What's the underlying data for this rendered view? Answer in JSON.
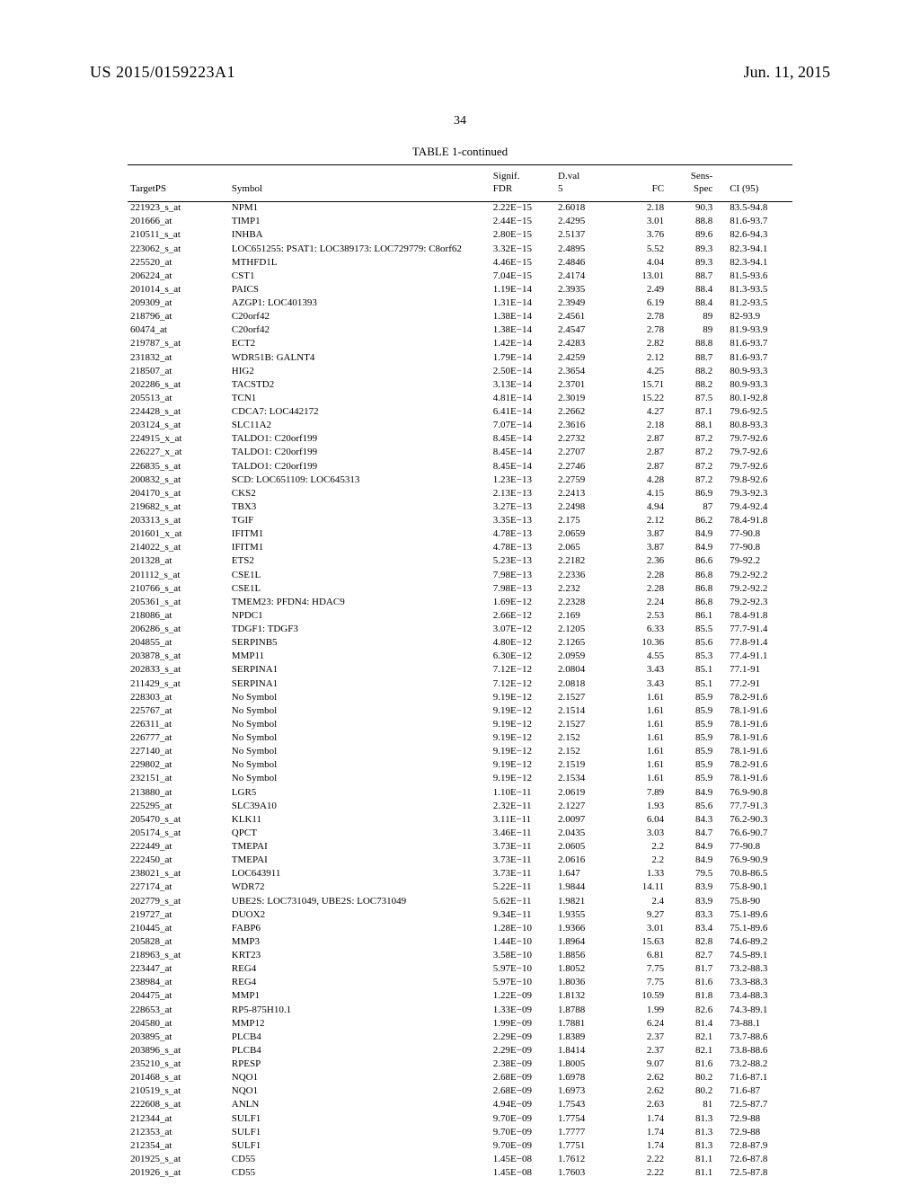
{
  "header": {
    "document_id": "US 2015/0159223A1",
    "date": "Jun. 11, 2015"
  },
  "page_number": "34",
  "table": {
    "title": "TABLE 1-continued",
    "columns": {
      "target_ps": "TargetPS",
      "symbol": "Symbol",
      "signif": "Signif.\nFDR",
      "dval": "D.val\n5",
      "fc": "FC",
      "sens": "Sens-\nSpec",
      "ci": "CI (95)"
    },
    "rows": [
      {
        "t": "221923_s_at",
        "s": "NPM1",
        "f": "2.22E−15",
        "d": "2.6018",
        "fc": "2.18",
        "sp": "90.3",
        "ci": "83.5-94.8"
      },
      {
        "t": "201666_at",
        "s": "TIMP1",
        "f": "2.44E−15",
        "d": "2.4295",
        "fc": "3.01",
        "sp": "88.8",
        "ci": "81.6-93.7"
      },
      {
        "t": "210511_s_at",
        "s": "INHBA",
        "f": "2.80E−15",
        "d": "2.5137",
        "fc": "3.76",
        "sp": "89.6",
        "ci": "82.6-94.3"
      },
      {
        "t": "223062_s_at",
        "s": "LOC651255: PSAT1: LOC389173: LOC729779: C8orf62",
        "f": "3.32E−15",
        "d": "2.4895",
        "fc": "5.52",
        "sp": "89.3",
        "ci": "82.3-94.1"
      },
      {
        "t": "225520_at",
        "s": "MTHFD1L",
        "f": "4.46E−15",
        "d": "2.4846",
        "fc": "4.04",
        "sp": "89.3",
        "ci": "82.3-94.1"
      },
      {
        "t": "206224_at",
        "s": "CST1",
        "f": "7.04E−15",
        "d": "2.4174",
        "fc": "13.01",
        "sp": "88.7",
        "ci": "81.5-93.6"
      },
      {
        "t": "201014_s_at",
        "s": "PAICS",
        "f": "1.19E−14",
        "d": "2.3935",
        "fc": "2.49",
        "sp": "88.4",
        "ci": "81.3-93.5"
      },
      {
        "t": "209309_at",
        "s": "AZGP1: LOC401393",
        "f": "1.31E−14",
        "d": "2.3949",
        "fc": "6.19",
        "sp": "88.4",
        "ci": "81.2-93.5"
      },
      {
        "t": "218796_at",
        "s": "C20orf42",
        "f": "1.38E−14",
        "d": "2.4561",
        "fc": "2.78",
        "sp": "89",
        "ci": "82-93.9"
      },
      {
        "t": "60474_at",
        "s": "C20orf42",
        "f": "1.38E−14",
        "d": "2.4547",
        "fc": "2.78",
        "sp": "89",
        "ci": "81.9-93.9"
      },
      {
        "t": "219787_s_at",
        "s": "ECT2",
        "f": "1.42E−14",
        "d": "2.4283",
        "fc": "2.82",
        "sp": "88.8",
        "ci": "81.6-93.7"
      },
      {
        "t": "231832_at",
        "s": "WDR51B: GALNT4",
        "f": "1.79E−14",
        "d": "2.4259",
        "fc": "2.12",
        "sp": "88.7",
        "ci": "81.6-93.7"
      },
      {
        "t": "218507_at",
        "s": "HIG2",
        "f": "2.50E−14",
        "d": "2.3654",
        "fc": "4.25",
        "sp": "88.2",
        "ci": "80.9-93.3"
      },
      {
        "t": "202286_s_at",
        "s": "TACSTD2",
        "f": "3.13E−14",
        "d": "2.3701",
        "fc": "15.71",
        "sp": "88.2",
        "ci": "80.9-93.3"
      },
      {
        "t": "205513_at",
        "s": "TCN1",
        "f": "4.81E−14",
        "d": "2.3019",
        "fc": "15.22",
        "sp": "87.5",
        "ci": "80.1-92.8"
      },
      {
        "t": "224428_s_at",
        "s": "CDCA7: LOC442172",
        "f": "6.41E−14",
        "d": "2.2662",
        "fc": "4.27",
        "sp": "87.1",
        "ci": "79.6-92.5"
      },
      {
        "t": "203124_s_at",
        "s": "SLC11A2",
        "f": "7.07E−14",
        "d": "2.3616",
        "fc": "2.18",
        "sp": "88.1",
        "ci": "80.8-93.3"
      },
      {
        "t": "224915_x_at",
        "s": "TALDO1: C20orf199",
        "f": "8.45E−14",
        "d": "2.2732",
        "fc": "2.87",
        "sp": "87.2",
        "ci": "79.7-92.6"
      },
      {
        "t": "226227_x_at",
        "s": "TALDO1: C20orf199",
        "f": "8.45E−14",
        "d": "2.2707",
        "fc": "2.87",
        "sp": "87.2",
        "ci": "79.7-92.6"
      },
      {
        "t": "226835_s_at",
        "s": "TALDO1: C20orf199",
        "f": "8.45E−14",
        "d": "2.2746",
        "fc": "2.87",
        "sp": "87.2",
        "ci": "79.7-92.6"
      },
      {
        "t": "200832_s_at",
        "s": "SCD: LOC651109: LOC645313",
        "f": "1.23E−13",
        "d": "2.2759",
        "fc": "4.28",
        "sp": "87.2",
        "ci": "79.8-92.6"
      },
      {
        "t": "204170_s_at",
        "s": "CKS2",
        "f": "2.13E−13",
        "d": "2.2413",
        "fc": "4.15",
        "sp": "86.9",
        "ci": "79.3-92.3"
      },
      {
        "t": "219682_s_at",
        "s": "TBX3",
        "f": "3.27E−13",
        "d": "2.2498",
        "fc": "4.94",
        "sp": "87",
        "ci": "79.4-92.4"
      },
      {
        "t": "203313_s_at",
        "s": "TGIF",
        "f": "3.35E−13",
        "d": "2.175",
        "fc": "2.12",
        "sp": "86.2",
        "ci": "78.4-91.8"
      },
      {
        "t": "201601_x_at",
        "s": "IFITM1",
        "f": "4.78E−13",
        "d": "2.0659",
        "fc": "3.87",
        "sp": "84.9",
        "ci": "77-90.8"
      },
      {
        "t": "214022_s_at",
        "s": "IFITM1",
        "f": "4.78E−13",
        "d": "2.065",
        "fc": "3.87",
        "sp": "84.9",
        "ci": "77-90.8"
      },
      {
        "t": "201328_at",
        "s": "ETS2",
        "f": "5.23E−13",
        "d": "2.2182",
        "fc": "2.36",
        "sp": "86.6",
        "ci": "79-92.2"
      },
      {
        "t": "201112_s_at",
        "s": "CSE1L",
        "f": "7.98E−13",
        "d": "2.2336",
        "fc": "2.28",
        "sp": "86.8",
        "ci": "79.2-92.2"
      },
      {
        "t": "210766_s_at",
        "s": "CSE1L",
        "f": "7.98E−13",
        "d": "2.232",
        "fc": "2.28",
        "sp": "86.8",
        "ci": "79.2-92.2"
      },
      {
        "t": "205361_s_at",
        "s": "TMEM23: PFDN4: HDAC9",
        "f": "1.69E−12",
        "d": "2.2328",
        "fc": "2.24",
        "sp": "86.8",
        "ci": "79.2-92.3"
      },
      {
        "t": "218086_at",
        "s": "NPDC1",
        "f": "2.66E−12",
        "d": "2.169",
        "fc": "2.53",
        "sp": "86.1",
        "ci": "78.4-91.8"
      },
      {
        "t": "206286_s_at",
        "s": "TDGF1: TDGF3",
        "f": "3.07E−12",
        "d": "2.1205",
        "fc": "6.33",
        "sp": "85.5",
        "ci": "77.7-91.4"
      },
      {
        "t": "204855_at",
        "s": "SERPINB5",
        "f": "4.80E−12",
        "d": "2.1265",
        "fc": "10.36",
        "sp": "85.6",
        "ci": "77.8-91.4"
      },
      {
        "t": "203878_s_at",
        "s": "MMP11",
        "f": "6.30E−12",
        "d": "2.0959",
        "fc": "4.55",
        "sp": "85.3",
        "ci": "77.4-91.1"
      },
      {
        "t": "202833_s_at",
        "s": "SERPINA1",
        "f": "7.12E−12",
        "d": "2.0804",
        "fc": "3.43",
        "sp": "85.1",
        "ci": "77.1-91"
      },
      {
        "t": "211429_s_at",
        "s": "SERPINA1",
        "f": "7.12E−12",
        "d": "2.0818",
        "fc": "3.43",
        "sp": "85.1",
        "ci": "77.2-91"
      },
      {
        "t": "228303_at",
        "s": "No Symbol",
        "f": "9.19E−12",
        "d": "2.1527",
        "fc": "1.61",
        "sp": "85.9",
        "ci": "78.2-91.6"
      },
      {
        "t": "225767_at",
        "s": "No Symbol",
        "f": "9.19E−12",
        "d": "2.1514",
        "fc": "1.61",
        "sp": "85.9",
        "ci": "78.1-91.6"
      },
      {
        "t": "226311_at",
        "s": "No Symbol",
        "f": "9.19E−12",
        "d": "2.1527",
        "fc": "1.61",
        "sp": "85.9",
        "ci": "78.1-91.6"
      },
      {
        "t": "226777_at",
        "s": "No Symbol",
        "f": "9.19E−12",
        "d": "2.152",
        "fc": "1.61",
        "sp": "85.9",
        "ci": "78.1-91.6"
      },
      {
        "t": "227140_at",
        "s": "No Symbol",
        "f": "9.19E−12",
        "d": "2.152",
        "fc": "1.61",
        "sp": "85.9",
        "ci": "78.1-91.6"
      },
      {
        "t": "229802_at",
        "s": "No Symbol",
        "f": "9.19E−12",
        "d": "2.1519",
        "fc": "1.61",
        "sp": "85.9",
        "ci": "78.2-91.6"
      },
      {
        "t": "232151_at",
        "s": "No Symbol",
        "f": "9.19E−12",
        "d": "2.1534",
        "fc": "1.61",
        "sp": "85.9",
        "ci": "78.1-91.6"
      },
      {
        "t": "213880_at",
        "s": "LGR5",
        "f": "1.10E−11",
        "d": "2.0619",
        "fc": "7.89",
        "sp": "84.9",
        "ci": "76.9-90.8"
      },
      {
        "t": "225295_at",
        "s": "SLC39A10",
        "f": "2.32E−11",
        "d": "2.1227",
        "fc": "1.93",
        "sp": "85.6",
        "ci": "77.7-91.3"
      },
      {
        "t": "205470_s_at",
        "s": "KLK11",
        "f": "3.11E−11",
        "d": "2.0097",
        "fc": "6.04",
        "sp": "84.3",
        "ci": "76.2-90.3"
      },
      {
        "t": "205174_s_at",
        "s": "QPCT",
        "f": "3.46E−11",
        "d": "2.0435",
        "fc": "3.03",
        "sp": "84.7",
        "ci": "76.6-90.7"
      },
      {
        "t": "222449_at",
        "s": "TMEPAI",
        "f": "3.73E−11",
        "d": "2.0605",
        "fc": "2.2",
        "sp": "84.9",
        "ci": "77-90.8"
      },
      {
        "t": "222450_at",
        "s": "TMEPAI",
        "f": "3.73E−11",
        "d": "2.0616",
        "fc": "2.2",
        "sp": "84.9",
        "ci": "76.9-90.9"
      },
      {
        "t": "238021_s_at",
        "s": "LOC643911",
        "f": "3.73E−11",
        "d": "1.647",
        "fc": "1.33",
        "sp": "79.5",
        "ci": "70.8-86.5"
      },
      {
        "t": "227174_at",
        "s": "WDR72",
        "f": "5.22E−11",
        "d": "1.9844",
        "fc": "14.11",
        "sp": "83.9",
        "ci": "75.8-90.1"
      },
      {
        "t": "202779_s_at",
        "s": "UBE2S: LOC731049, UBE2S: LOC731049",
        "f": "5.62E−11",
        "d": "1.9821",
        "fc": "2.4",
        "sp": "83.9",
        "ci": "75.8-90"
      },
      {
        "t": "219727_at",
        "s": "DUOX2",
        "f": "9.34E−11",
        "d": "1.9355",
        "fc": "9.27",
        "sp": "83.3",
        "ci": "75.1-89.6"
      },
      {
        "t": "210445_at",
        "s": "FABP6",
        "f": "1.28E−10",
        "d": "1.9366",
        "fc": "3.01",
        "sp": "83.4",
        "ci": "75.1-89.6"
      },
      {
        "t": "205828_at",
        "s": "MMP3",
        "f": "1.44E−10",
        "d": "1.8964",
        "fc": "15.63",
        "sp": "82.8",
        "ci": "74.6-89.2"
      },
      {
        "t": "218963_s_at",
        "s": "KRT23",
        "f": "3.58E−10",
        "d": "1.8856",
        "fc": "6.81",
        "sp": "82.7",
        "ci": "74.5-89.1"
      },
      {
        "t": "223447_at",
        "s": "REG4",
        "f": "5.97E−10",
        "d": "1.8052",
        "fc": "7.75",
        "sp": "81.7",
        "ci": "73.2-88.3"
      },
      {
        "t": "238984_at",
        "s": "REG4",
        "f": "5.97E−10",
        "d": "1.8036",
        "fc": "7.75",
        "sp": "81.6",
        "ci": "73.3-88.3"
      },
      {
        "t": "204475_at",
        "s": "MMP1",
        "f": "1.22E−09",
        "d": "1.8132",
        "fc": "10.59",
        "sp": "81.8",
        "ci": "73.4-88.3"
      },
      {
        "t": "228653_at",
        "s": "RP5-875H10.1",
        "f": "1.33E−09",
        "d": "1.8788",
        "fc": "1.99",
        "sp": "82.6",
        "ci": "74.3-89.1"
      },
      {
        "t": "204580_at",
        "s": "MMP12",
        "f": "1.99E−09",
        "d": "1.7881",
        "fc": "6.24",
        "sp": "81.4",
        "ci": "73-88.1"
      },
      {
        "t": "203895_at",
        "s": "PLCB4",
        "f": "2.29E−09",
        "d": "1.8389",
        "fc": "2.37",
        "sp": "82.1",
        "ci": "73.7-88.6"
      },
      {
        "t": "203896_s_at",
        "s": "PLCB4",
        "f": "2.29E−09",
        "d": "1.8414",
        "fc": "2.37",
        "sp": "82.1",
        "ci": "73.8-88.6"
      },
      {
        "t": "235210_s_at",
        "s": "RPESP",
        "f": "2.38E−09",
        "d": "1.8005",
        "fc": "9.07",
        "sp": "81.6",
        "ci": "73.2-88.2"
      },
      {
        "t": "201468_s_at",
        "s": "NQO1",
        "f": "2.68E−09",
        "d": "1.6978",
        "fc": "2.62",
        "sp": "80.2",
        "ci": "71.6-87.1"
      },
      {
        "t": "210519_s_at",
        "s": "NQO1",
        "f": "2.68E−09",
        "d": "1.6973",
        "fc": "2.62",
        "sp": "80.2",
        "ci": "71.6-87"
      },
      {
        "t": "222608_s_at",
        "s": "ANLN",
        "f": "4.94E−09",
        "d": "1.7543",
        "fc": "2.63",
        "sp": "81",
        "ci": "72.5-87.7"
      },
      {
        "t": "212344_at",
        "s": "SULF1",
        "f": "9.70E−09",
        "d": "1.7754",
        "fc": "1.74",
        "sp": "81.3",
        "ci": "72.9-88"
      },
      {
        "t": "212353_at",
        "s": "SULF1",
        "f": "9.70E−09",
        "d": "1.7777",
        "fc": "1.74",
        "sp": "81.3",
        "ci": "72.9-88"
      },
      {
        "t": "212354_at",
        "s": "SULF1",
        "f": "9.70E−09",
        "d": "1.7751",
        "fc": "1.74",
        "sp": "81.3",
        "ci": "72.8-87.9"
      },
      {
        "t": "201925_s_at",
        "s": "CD55",
        "f": "1.45E−08",
        "d": "1.7612",
        "fc": "2.22",
        "sp": "81.1",
        "ci": "72.6-87.8"
      },
      {
        "t": "201926_s_at",
        "s": "CD55",
        "f": "1.45E−08",
        "d": "1.7603",
        "fc": "2.22",
        "sp": "81.1",
        "ci": "72.5-87.8"
      }
    ]
  }
}
